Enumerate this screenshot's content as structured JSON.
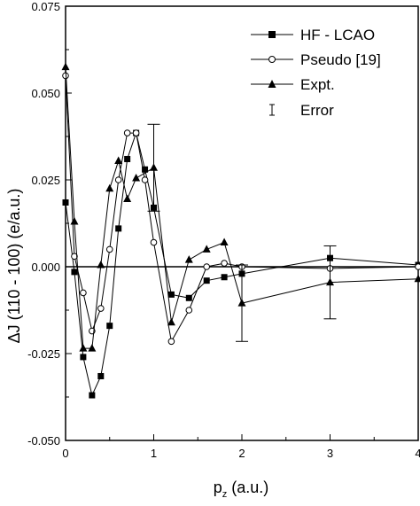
{
  "chart_data": {
    "type": "line",
    "xlabel": {
      "main": "p",
      "sub": "z",
      "rest": " (a.u.)"
    },
    "ylabel": "ΔJ (110 - 100) (e/a.u.)",
    "xlim": [
      0,
      4
    ],
    "ylim": [
      -0.05,
      0.075
    ],
    "x_ticks": [
      0,
      1,
      2,
      3,
      4
    ],
    "x_tick_labels": [
      "0",
      "1",
      "2",
      "3",
      "4"
    ],
    "y_ticks": [
      -0.05,
      -0.025,
      0,
      0.025,
      0.05,
      0.075
    ],
    "y_tick_labels": [
      "-0.050",
      "-0.025",
      "0.000",
      "0.025",
      "0.050",
      "0.075"
    ],
    "zero_line": true,
    "grid": false,
    "legend_position": "top-right",
    "series": [
      {
        "name": "HF - LCAO",
        "marker": "filled-square",
        "x": [
          0,
          0.1,
          0.2,
          0.3,
          0.4,
          0.5,
          0.6,
          0.7,
          0.8,
          0.9,
          1.0,
          1.2,
          1.4,
          1.6,
          1.8,
          2.0,
          3.0,
          4.0
        ],
        "y": [
          0.0185,
          -0.0015,
          -0.026,
          -0.037,
          -0.0315,
          -0.017,
          0.011,
          0.031,
          0.0385,
          0.028,
          0.017,
          -0.008,
          -0.009,
          -0.004,
          -0.003,
          -0.002,
          0.0025,
          0.0005
        ]
      },
      {
        "name": "Pseudo [19]",
        "marker": "open-circle",
        "x": [
          0,
          0.1,
          0.2,
          0.3,
          0.4,
          0.5,
          0.6,
          0.7,
          0.8,
          0.9,
          1.0,
          1.2,
          1.4,
          1.6,
          1.8,
          2.0,
          3.0,
          4.0
        ],
        "y": [
          0.055,
          0.003,
          -0.0075,
          -0.0185,
          -0.012,
          0.005,
          0.025,
          0.0385,
          0.0385,
          0.025,
          0.007,
          -0.0215,
          -0.0125,
          0.0,
          0.001,
          0.0,
          -0.0005,
          0.0
        ]
      },
      {
        "name": "Expt.",
        "marker": "filled-triangle",
        "x": [
          0,
          0.1,
          0.2,
          0.3,
          0.4,
          0.5,
          0.6,
          0.7,
          0.8,
          1.0,
          1.2,
          1.4,
          1.6,
          1.8,
          2.0,
          3.0,
          4.0
        ],
        "y": [
          0.0575,
          0.013,
          -0.0235,
          -0.0235,
          0.0005,
          0.0225,
          0.0305,
          0.0195,
          0.0255,
          0.0285,
          -0.016,
          0.002,
          0.005,
          0.007,
          -0.0105,
          -0.0045,
          -0.0035
        ]
      }
    ],
    "error_bars": {
      "name": "Error",
      "x": [
        1.0,
        2.0,
        3.0
      ],
      "center": [
        0.0285,
        -0.0105,
        -0.0045
      ],
      "half_width": [
        0.0125,
        0.011,
        0.0105
      ]
    }
  }
}
